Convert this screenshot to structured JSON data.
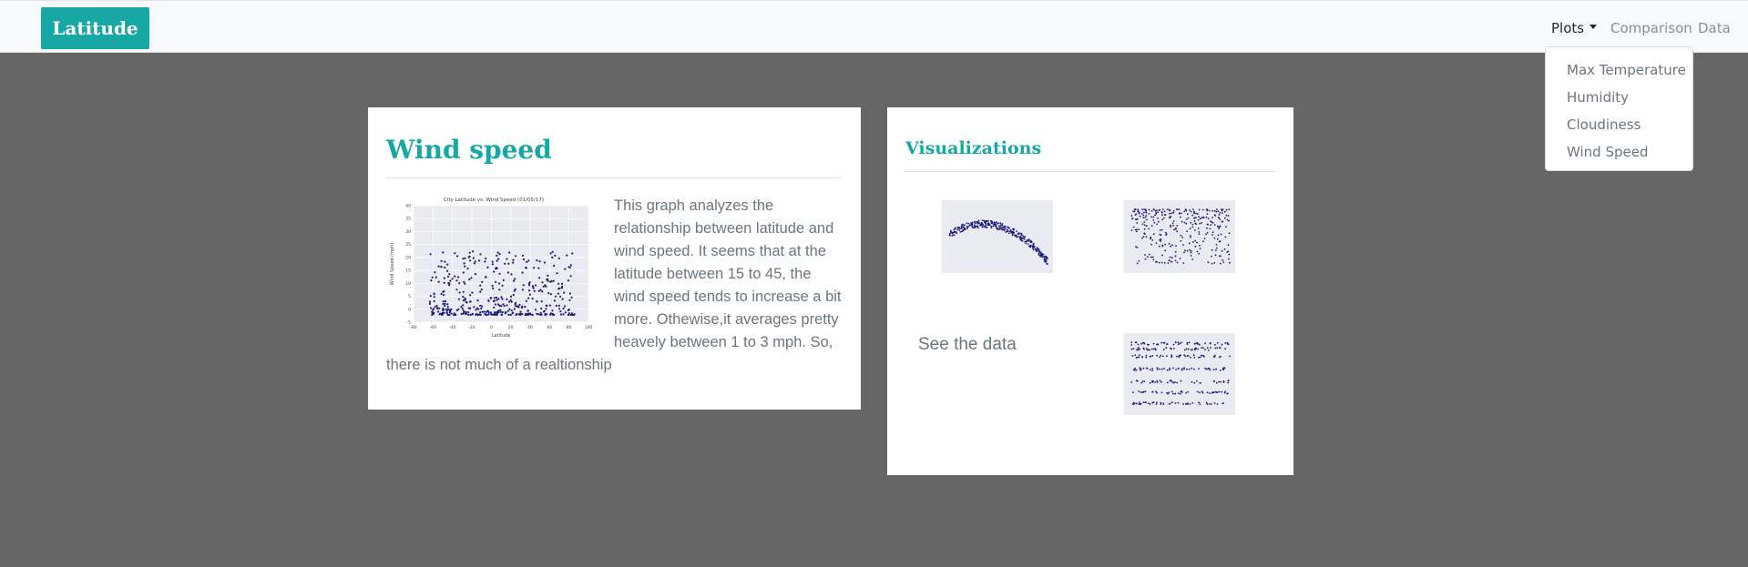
{
  "brand": "Latitude",
  "nav": {
    "plots": "Plots",
    "comparison": "Comparison",
    "data": "Data"
  },
  "dropdown": [
    "Max Temperature",
    "Humidity",
    "Cloudiness",
    "Wind Speed"
  ],
  "wind_card": {
    "title": "Wind speed",
    "body": "This graph analyzes the relationship between latitude and wind speed. It seems that at the latitude between 15 to 45, the wind speed tends to increase a bit more. Othewise,it averages pretty heavely between 1 to 3 mph. So, there is not much of a realtionship",
    "plot": {
      "title": "City Latitude vs. Wind Speed (01/05/17)",
      "xlabel": "Latitude",
      "ylabel": "Wind Speed (mph)",
      "xticks": [
        "-80",
        "-60",
        "-40",
        "-20",
        "0",
        "20",
        "40",
        "60",
        "80",
        "100"
      ],
      "yticks": [
        "40",
        "35",
        "30",
        "25",
        "20",
        "15",
        "10",
        "5",
        "0",
        "-5"
      ]
    }
  },
  "viz_card": {
    "title": "Visualizations",
    "see_data": "See the data"
  },
  "colors": {
    "accent": "#17a8a5",
    "background": "#666666",
    "marker": "#1b1b7a",
    "plot_bg": "#eaeaf2"
  }
}
